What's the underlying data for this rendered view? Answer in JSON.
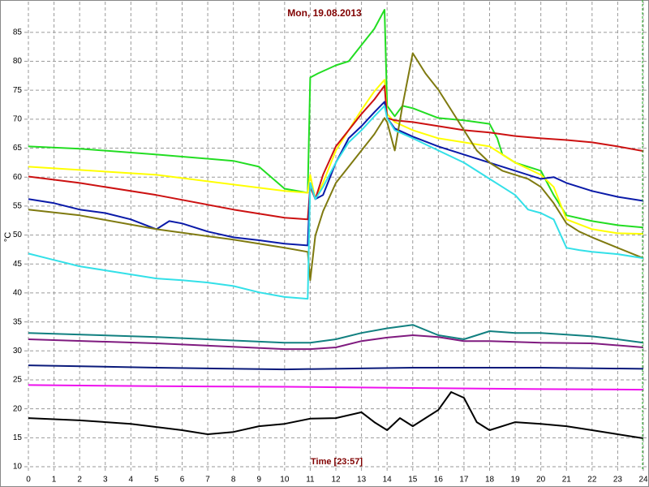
{
  "chart_data": {
    "type": "line",
    "title": "Mon, 19.08.2013",
    "xlabel": "Time [23:57]",
    "ylabel": "°C",
    "xlim": [
      0,
      24
    ],
    "xticks": [
      0,
      1,
      2,
      3,
      4,
      5,
      6,
      7,
      8,
      9,
      10,
      11,
      12,
      13,
      14,
      15,
      16,
      17,
      18,
      19,
      20,
      21,
      22,
      23,
      24
    ],
    "ylim": [
      9.3,
      90.3
    ],
    "yticks": [
      10,
      15,
      20,
      25,
      30,
      35,
      40,
      45,
      50,
      55,
      60,
      65,
      70,
      75,
      80,
      85
    ],
    "grid": true,
    "series": [
      {
        "color": "#22dd22",
        "x": [
          0,
          2,
          5,
          8,
          9,
          10,
          10.9,
          11,
          11.3,
          12,
          12.5,
          13,
          13.5,
          13.9,
          14,
          14.3,
          14.6,
          15,
          16,
          17,
          18,
          18.3,
          18.5,
          19,
          20,
          20.5,
          21,
          22,
          23,
          24
        ],
        "values": [
          65.3,
          64.9,
          63.9,
          62.8,
          61.8,
          58.0,
          57.3,
          77.2,
          77.9,
          79.3,
          80.0,
          82.8,
          85.6,
          88.9,
          72.3,
          70.5,
          72.3,
          71.9,
          70.2,
          69.8,
          69.2,
          66.7,
          63.9,
          62.5,
          61.1,
          56.9,
          53.4,
          52.4,
          51.7,
          51.3
        ]
      },
      {
        "color": "#ffff00",
        "x": [
          0,
          5,
          10,
          10.9,
          11,
          11.2,
          11.5,
          12,
          12.5,
          13,
          13.5,
          13.9,
          14,
          14.3,
          15,
          16,
          17,
          18,
          19,
          20,
          20.5,
          21,
          22,
          23,
          24
        ],
        "values": [
          61.8,
          60.4,
          57.6,
          57.3,
          60.4,
          56.2,
          59.0,
          64.6,
          68.1,
          71.6,
          74.8,
          76.8,
          70.9,
          69.5,
          68.1,
          66.7,
          66.0,
          65.3,
          62.5,
          60.4,
          58.3,
          52.7,
          51.0,
          50.3,
          50.2
        ]
      },
      {
        "color": "#cc1111",
        "x": [
          0,
          2,
          5,
          8,
          10,
          10.9,
          11,
          11.2,
          11.5,
          12,
          12.5,
          13,
          13.5,
          13.9,
          14,
          14.3,
          15,
          16,
          17,
          18,
          19,
          20,
          21,
          22,
          23,
          24
        ],
        "values": [
          60.1,
          59.0,
          56.9,
          54.4,
          53.0,
          52.7,
          58.3,
          56.2,
          60.4,
          65.3,
          68.1,
          70.9,
          73.4,
          75.8,
          70.2,
          69.8,
          69.5,
          68.8,
          68.1,
          67.7,
          67.1,
          66.7,
          66.4,
          66.0,
          65.3,
          64.5
        ]
      },
      {
        "color": "#0a1aa8",
        "x": [
          0,
          1,
          2,
          3,
          4,
          5,
          5.5,
          6,
          7,
          8,
          9,
          10,
          10.9,
          11,
          11.2,
          11.5,
          12,
          12.5,
          13,
          13.5,
          13.9,
          14,
          14.3,
          15,
          16,
          17,
          18,
          19,
          20,
          20.5,
          21,
          22,
          23,
          24
        ],
        "values": [
          56.2,
          55.5,
          54.4,
          53.8,
          52.7,
          51.0,
          52.4,
          52.0,
          50.6,
          49.6,
          49.1,
          48.5,
          48.2,
          59.0,
          56.2,
          56.9,
          62.5,
          66.7,
          68.8,
          71.2,
          73.0,
          70.2,
          68.4,
          67.0,
          65.3,
          63.9,
          62.5,
          61.1,
          59.7,
          60.0,
          59.0,
          57.6,
          56.6,
          55.9
        ]
      },
      {
        "color": "#7f7a10",
        "x": [
          0,
          2,
          5,
          8,
          10,
          10.9,
          11,
          11.2,
          11.5,
          12,
          12.5,
          13,
          13.5,
          13.9,
          14,
          14.3,
          14.6,
          15,
          15.5,
          16,
          16.5,
          17,
          17.5,
          18,
          18.5,
          19,
          19.5,
          20,
          20.5,
          21,
          21.5,
          22,
          23,
          24
        ],
        "values": [
          54.4,
          53.4,
          51.0,
          49.2,
          47.8,
          47.1,
          42.2,
          49.9,
          54.1,
          59.0,
          61.8,
          64.6,
          67.4,
          70.2,
          69.5,
          64.6,
          72.3,
          81.4,
          77.9,
          75.1,
          71.6,
          68.1,
          64.6,
          62.5,
          61.1,
          60.4,
          59.7,
          58.3,
          55.5,
          52.0,
          50.6,
          49.6,
          47.8,
          46.0
        ]
      },
      {
        "color": "#33e0e8",
        "x": [
          0,
          1,
          2,
          3,
          4,
          5,
          6,
          7,
          8,
          9,
          10,
          10.9,
          11,
          11.2,
          11.5,
          12,
          12.5,
          13,
          13.5,
          13.9,
          14,
          14.3,
          15,
          16,
          17,
          17.5,
          18,
          18.5,
          19,
          19.5,
          20,
          20.5,
          21,
          21.5,
          22,
          23,
          24
        ],
        "values": [
          46.8,
          45.7,
          44.6,
          43.9,
          43.2,
          42.5,
          42.2,
          41.8,
          41.2,
          40.1,
          39.3,
          39.0,
          59.0,
          56.2,
          58.3,
          62.5,
          66.0,
          68.1,
          70.5,
          72.3,
          70.2,
          68.1,
          66.7,
          64.6,
          62.5,
          61.1,
          59.7,
          58.3,
          56.9,
          54.4,
          53.8,
          52.7,
          47.8,
          47.4,
          47.1,
          46.7,
          46.0
        ]
      },
      {
        "color": "#118080",
        "x": [
          0,
          5,
          10,
          11,
          12,
          13,
          14,
          15,
          16,
          17,
          18,
          19,
          20,
          21,
          22,
          23,
          24
        ],
        "values": [
          33.1,
          32.4,
          31.4,
          31.4,
          32.0,
          33.1,
          33.9,
          34.5,
          32.7,
          32.0,
          33.4,
          33.1,
          33.1,
          32.8,
          32.5,
          32.0,
          31.4
        ]
      },
      {
        "color": "#7f1a7f",
        "x": [
          0,
          5,
          10,
          11,
          12,
          13,
          14,
          15,
          16,
          17,
          18,
          20,
          22,
          24
        ],
        "values": [
          32.0,
          31.3,
          30.3,
          30.3,
          30.6,
          31.7,
          32.3,
          32.7,
          32.4,
          31.7,
          31.7,
          31.4,
          31.3,
          30.6
        ]
      },
      {
        "color": "#0a1a7a",
        "x": [
          0,
          5,
          10,
          15,
          20,
          24
        ],
        "values": [
          27.5,
          27.1,
          26.8,
          27.1,
          27.1,
          26.9
        ]
      },
      {
        "color": "#ee11ee",
        "x": [
          0,
          5,
          10,
          15,
          20,
          24
        ],
        "values": [
          24.1,
          23.9,
          23.8,
          23.6,
          23.4,
          23.3
        ]
      },
      {
        "color": "#000000",
        "x": [
          0,
          2,
          4,
          6,
          7,
          8,
          9,
          10,
          11,
          12,
          13,
          13.5,
          14,
          14.5,
          15,
          15.5,
          16,
          16.5,
          17,
          17.5,
          18,
          19,
          20,
          21,
          22,
          23,
          24
        ],
        "values": [
          18.4,
          18.0,
          17.4,
          16.3,
          15.6,
          16.0,
          17.0,
          17.4,
          18.3,
          18.4,
          19.4,
          17.7,
          16.3,
          18.4,
          17.0,
          18.4,
          19.8,
          22.9,
          21.9,
          17.7,
          16.3,
          17.7,
          17.4,
          17.0,
          16.3,
          15.6,
          14.9
        ]
      }
    ]
  }
}
